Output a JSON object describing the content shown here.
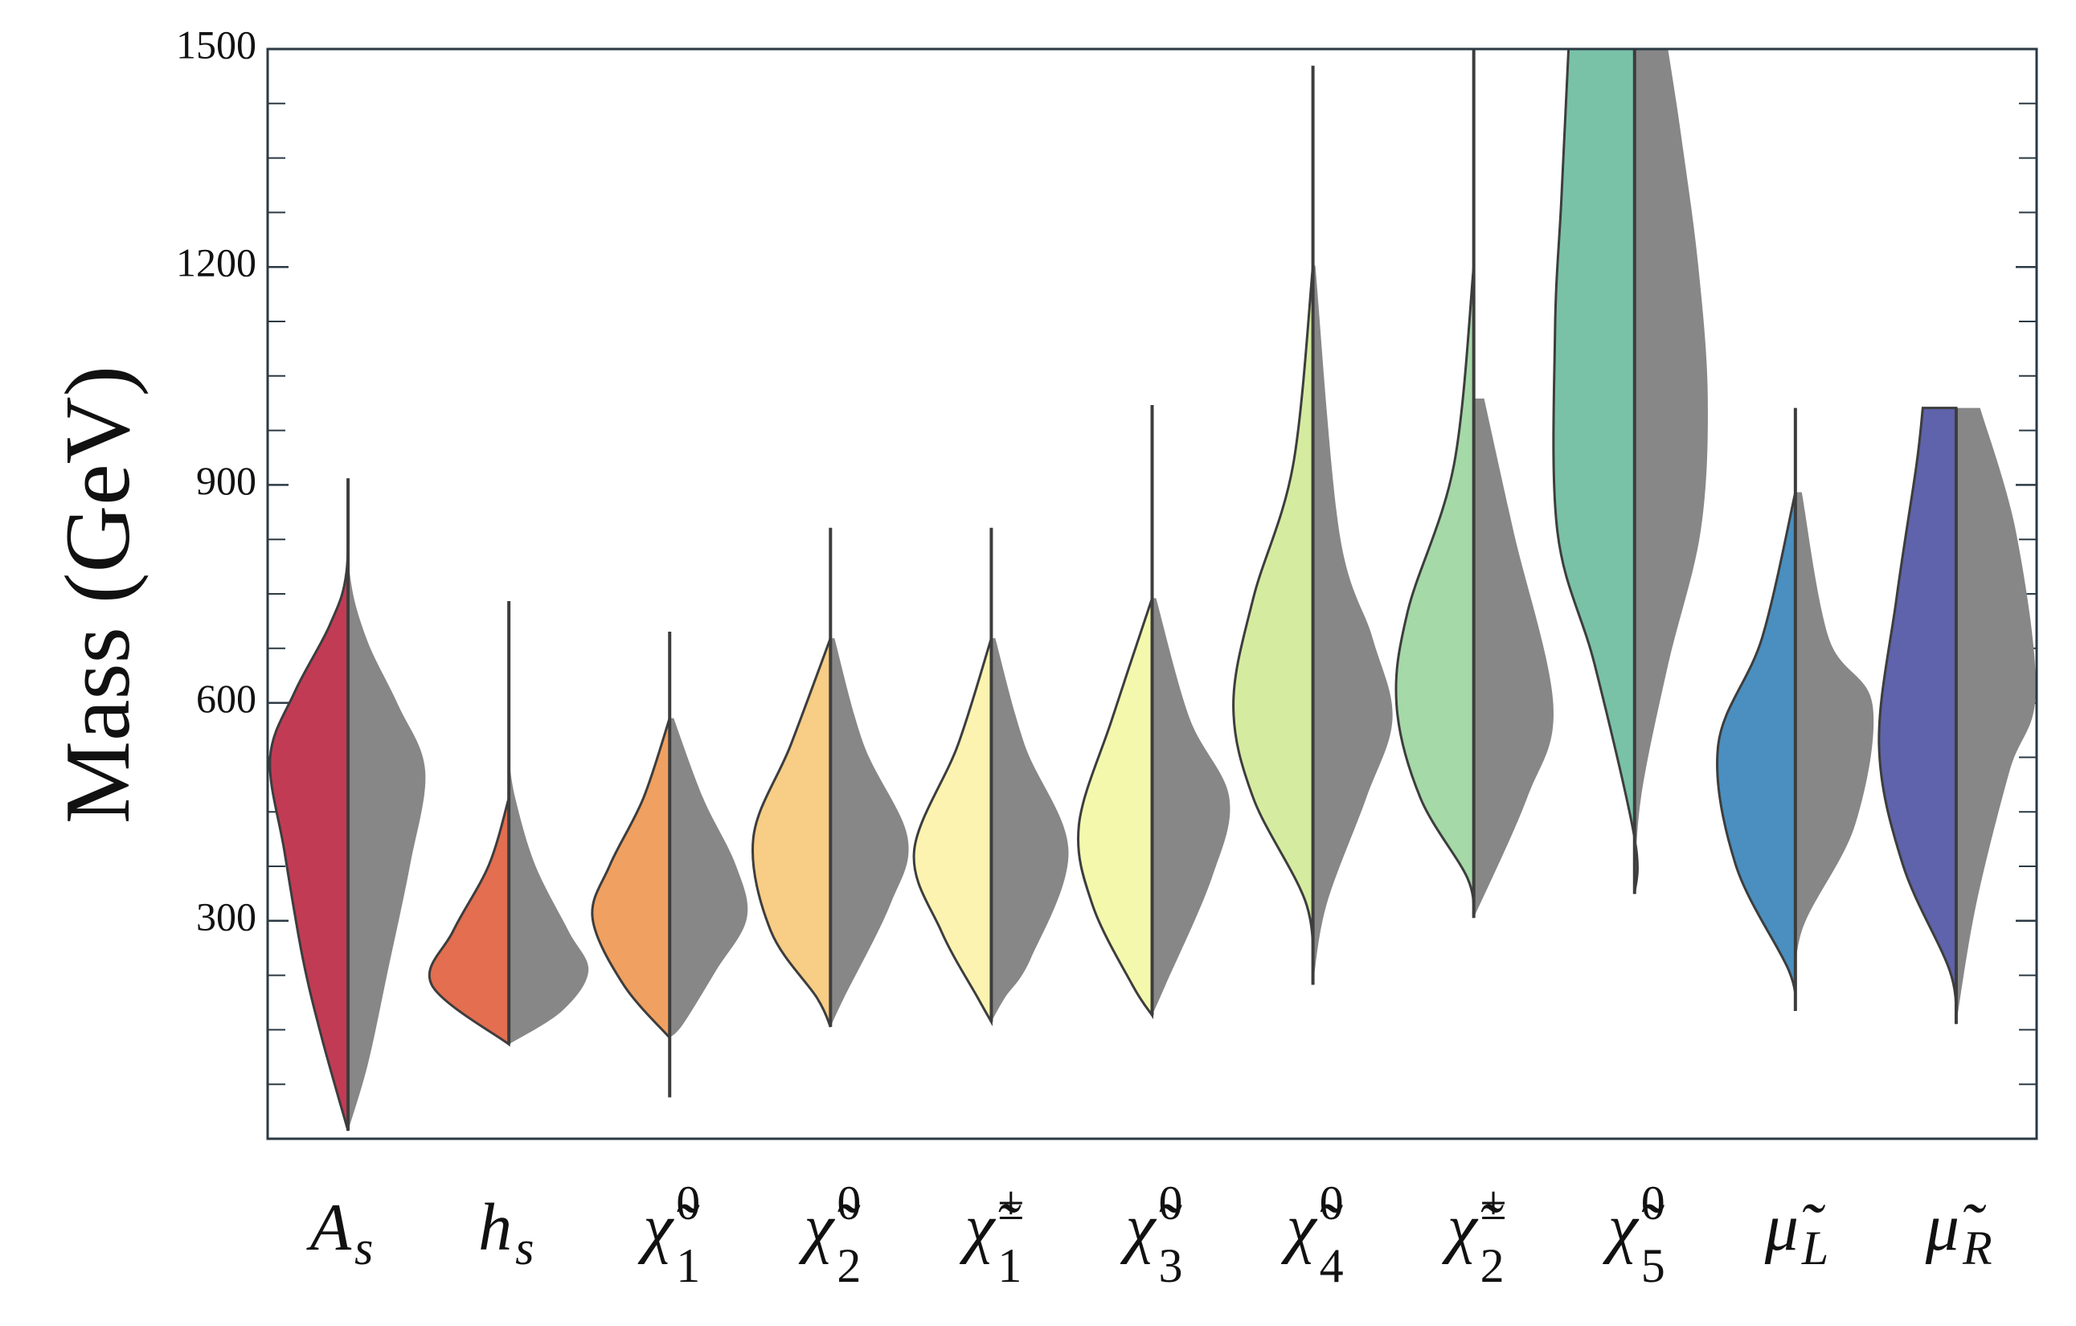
{
  "chart_data": {
    "type": "split_violin",
    "ylabel": "Mass (GeV)",
    "ylim": [
      0,
      1500
    ],
    "yticks": [
      300,
      600,
      900,
      1200,
      1500
    ],
    "yticks_minor": [
      75,
      150,
      225,
      375,
      450,
      525,
      675,
      750,
      825,
      975,
      1050,
      1125,
      1275,
      1350,
      1425
    ],
    "outline_color": "#3d3d3d",
    "categories": [
      {
        "base": "A",
        "sub": "s"
      },
      {
        "base": "h",
        "sub": "s"
      },
      {
        "base": "χ̃",
        "sup": "0",
        "sub": "1"
      },
      {
        "base": "χ̃",
        "sup": "0",
        "sub": "2"
      },
      {
        "base": "χ̃",
        "sup": "±",
        "sub": "1"
      },
      {
        "base": "χ̃",
        "sup": "0",
        "sub": "3"
      },
      {
        "base": "χ̃",
        "sup": "0",
        "sub": "4"
      },
      {
        "base": "χ̃",
        "sup": "±",
        "sub": "2"
      },
      {
        "base": "χ̃",
        "sup": "0",
        "sub": "5"
      },
      {
        "base": "μ̃",
        "sub": "L"
      },
      {
        "base": "μ̃",
        "sub": "R"
      }
    ],
    "violins": [
      {
        "range": [
          11,
          909
        ],
        "left": {
          "color": "#c23b55",
          "mass": [
            909,
            780,
            707,
            615,
            524,
            396,
            249,
            139,
            11
          ],
          "width": [
            0,
            0.02,
            0.23,
            0.67,
            0.98,
            0.8,
            0.57,
            0.33,
            0
          ]
        },
        "right": {
          "color": "#878787",
          "mass": [
            909,
            780,
            689,
            597,
            506,
            377,
            231,
            103,
            11
          ],
          "width": [
            0,
            0.02,
            0.23,
            0.63,
            0.97,
            0.78,
            0.5,
            0.25,
            0
          ]
        }
      },
      {
        "range": [
          130,
          740
        ],
        "left": {
          "color": "#e36e50",
          "mass": [
            469,
            377,
            286,
            212,
            130
          ],
          "width": [
            0,
            0.25,
            0.7,
            0.97,
            0
          ]
        },
        "right": {
          "color": "#878787",
          "mass": [
            524,
            469,
            377,
            286,
            231,
            176,
            130
          ],
          "width": [
            0,
            0.08,
            0.33,
            0.75,
            1.0,
            0.67,
            0
          ]
        }
      },
      {
        "range": [
          57,
          698
        ],
        "left": {
          "color": "#f0a060",
          "mass": [
            579,
            469,
            377,
            304,
            212,
            139
          ],
          "width": [
            0,
            0.33,
            0.75,
            0.97,
            0.58,
            0
          ]
        },
        "right": {
          "color": "#878787",
          "mass": [
            579,
            469,
            377,
            304,
            231,
            158,
            139
          ],
          "width": [
            0.05,
            0.42,
            0.83,
            0.97,
            0.58,
            0.17,
            0
          ]
        }
      },
      {
        "range": [
          154,
          841
        ],
        "left": {
          "color": "#f8cd85",
          "mass": [
            689,
            542,
            414,
            286,
            194,
            154
          ],
          "width": [
            0,
            0.5,
            0.97,
            0.75,
            0.17,
            0
          ]
        },
        "right": {
          "color": "#878787",
          "mass": [
            689,
            542,
            414,
            322,
            194,
            154
          ],
          "width": [
            0.05,
            0.42,
            0.97,
            0.75,
            0.17,
            0
          ]
        }
      },
      {
        "range": [
          161,
          841
        ],
        "left": {
          "color": "#fdf3b0",
          "mass": [
            689,
            542,
            396,
            286,
            194,
            161
          ],
          "width": [
            0,
            0.42,
            0.97,
            0.63,
            0.17,
            0
          ]
        },
        "right": {
          "color": "#878787",
          "mass": [
            689,
            542,
            396,
            249,
            194,
            161
          ],
          "width": [
            0.05,
            0.42,
            0.97,
            0.5,
            0.17,
            0
          ]
        }
      },
      {
        "range": [
          170,
          1010
        ],
        "left": {
          "color": "#f3f8ad",
          "mass": [
            744,
            579,
            432,
            322,
            212,
            170
          ],
          "width": [
            0,
            0.5,
            0.92,
            0.75,
            0.25,
            0
          ]
        },
        "right": {
          "color": "#878787",
          "mass": [
            744,
            579,
            469,
            359,
            212,
            170
          ],
          "width": [
            0.05,
            0.47,
            0.97,
            0.75,
            0.17,
            0
          ]
        }
      },
      {
        "range": [
          212,
          1477
        ],
        "left": {
          "color": "#d5eca0",
          "mass": [
            1202,
            927,
            744,
            597,
            469,
            322,
            212
          ],
          "width": [
            0,
            0.25,
            0.75,
            1.0,
            0.75,
            0.08,
            0
          ]
        },
        "right": {
          "color": "#878787",
          "mass": [
            1202,
            836,
            689,
            579,
            469,
            322,
            212
          ],
          "width": [
            0.03,
            0.33,
            0.75,
            1.0,
            0.67,
            0.17,
            0
          ]
        }
      },
      {
        "range": [
          304,
          1500
        ],
        "left": {
          "color": "#a5d9a8",
          "mass": [
            1202,
            927,
            726,
            597,
            469,
            359,
            304
          ],
          "width": [
            0,
            0.25,
            0.83,
            0.97,
            0.67,
            0.08,
            0
          ]
        },
        "right": {
          "color": "#878787",
          "mass": [
            1019,
            836,
            597,
            469,
            304
          ],
          "width": [
            0.13,
            0.5,
            1.0,
            0.67,
            0
          ]
        }
      },
      {
        "range": [
          337,
          1500
        ],
        "left": {
          "color": "#79c2a8",
          "mass": [
            1500,
            1293,
            1110,
            836,
            652,
            414,
            337
          ],
          "width": [
            0.83,
            0.92,
            1.0,
            0.97,
            0.5,
            0,
            0
          ]
        },
        "right": {
          "color": "#878787",
          "mass": [
            1500,
            1385,
            1202,
            1019,
            836,
            652,
            469,
            337
          ],
          "width": [
            0.42,
            0.58,
            0.8,
            0.92,
            0.83,
            0.42,
            0.08,
            0
          ]
        }
      },
      {
        "range": [
          176,
          1006
        ],
        "left": {
          "color": "#4a8fbf",
          "mass": [
            890,
            689,
            542,
            377,
            231,
            176
          ],
          "width": [
            0,
            0.42,
            0.97,
            0.75,
            0.08,
            0
          ]
        },
        "right": {
          "color": "#878787",
          "mass": [
            890,
            689,
            597,
            432,
            286,
            176
          ],
          "width": [
            0.08,
            0.42,
            0.97,
            0.75,
            0.08,
            0
          ]
        }
      },
      {
        "range": [
          158,
          1006
        ],
        "left": {
          "color": "#5e63ab",
          "mass": [
            1006,
            927,
            744,
            542,
            377,
            231,
            158
          ],
          "width": [
            0.42,
            0.5,
            0.75,
            0.97,
            0.67,
            0.08,
            0
          ]
        },
        "right": {
          "color": "#878787",
          "mass": [
            1006,
            836,
            615,
            506,
            322,
            158
          ],
          "width": [
            0.3,
            0.75,
            1.0,
            0.67,
            0.25,
            0
          ]
        }
      }
    ]
  }
}
